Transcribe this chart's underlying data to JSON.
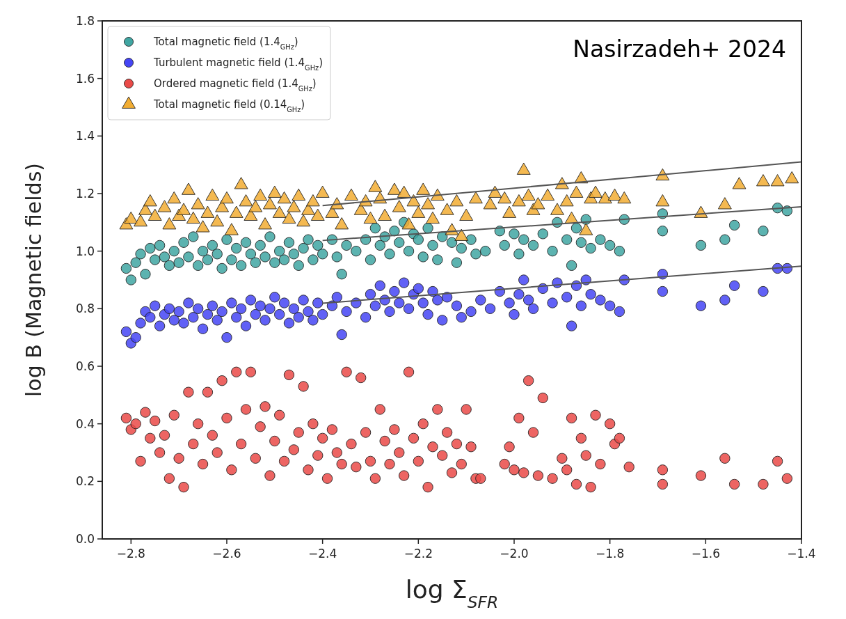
{
  "chart_data": {
    "type": "scatter",
    "xlabel": "log Σ$_{SFR}$",
    "ylabel": "log B (Magnetic fields)",
    "annotations": [
      "Nasirzadeh+ 2024"
    ],
    "xlim": [
      -2.86,
      -1.4
    ],
    "ylim": [
      0,
      1.8
    ],
    "xticks": [
      {
        "value": -2.8,
        "label": "−2.8"
      },
      {
        "value": -2.6,
        "label": "−2.6"
      },
      {
        "value": -2.4,
        "label": "−2.4"
      },
      {
        "value": -2.2,
        "label": "−2.2"
      },
      {
        "value": -2.0,
        "label": "−2.0"
      },
      {
        "value": -1.8,
        "label": "−1.8"
      },
      {
        "value": -1.6,
        "label": "−1.6"
      },
      {
        "value": -1.4,
        "label": "−1.4"
      }
    ],
    "yticks": [
      {
        "value": 0,
        "label": "0.0"
      },
      {
        "value": 0.2,
        "label": "0.2"
      },
      {
        "value": 0.4,
        "label": "0.4"
      },
      {
        "value": 0.6,
        "label": "0.6"
      },
      {
        "value": 0.8,
        "label": "0.8"
      },
      {
        "value": 1.0,
        "label": "1.0"
      },
      {
        "value": 1.2,
        "label": "1.2"
      },
      {
        "value": 1.4,
        "label": "1.4"
      },
      {
        "value": 1.6,
        "label": "1.6"
      },
      {
        "value": 1.8,
        "label": "1.8"
      }
    ],
    "grid": false,
    "legend": "top left",
    "series": [
      {
        "name": "Total magnetic field (1.4$_{GHz}$)",
        "color": "#40a6a2",
        "marker": "circle",
        "x": [
          -2.81,
          -2.8,
          -2.79,
          -2.78,
          -2.77,
          -2.76,
          -2.75,
          -2.74,
          -2.73,
          -2.72,
          -2.71,
          -2.7,
          -2.69,
          -2.68,
          -2.67,
          -2.66,
          -2.65,
          -2.64,
          -2.63,
          -2.62,
          -2.61,
          -2.6,
          -2.59,
          -2.58,
          -2.57,
          -2.56,
          -2.55,
          -2.54,
          -2.53,
          -2.52,
          -2.51,
          -2.5,
          -2.49,
          -2.48,
          -2.47,
          -2.46,
          -2.45,
          -2.44,
          -2.43,
          -2.42,
          -2.41,
          -2.4,
          -2.38,
          -2.37,
          -2.36,
          -2.35,
          -2.33,
          -2.31,
          -2.3,
          -2.29,
          -2.28,
          -2.27,
          -2.26,
          -2.25,
          -2.24,
          -2.23,
          -2.22,
          -2.21,
          -2.2,
          -2.19,
          -2.18,
          -2.17,
          -2.16,
          -2.15,
          -2.13,
          -2.12,
          -2.11,
          -2.09,
          -2.08,
          -2.06,
          -2.03,
          -2.02,
          -2.0,
          -1.99,
          -1.98,
          -1.96,
          -1.94,
          -1.92,
          -1.91,
          -1.89,
          -1.88,
          -1.87,
          -1.86,
          -1.85,
          -1.84,
          -1.82,
          -1.8,
          -1.78,
          -1.77,
          -1.69,
          -1.69,
          -1.61,
          -1.56,
          -1.54,
          -1.48,
          -1.45,
          -1.43
        ],
        "values": [
          0.94,
          0.9,
          0.96,
          0.99,
          0.92,
          1.01,
          0.97,
          1.02,
          0.98,
          0.95,
          1.0,
          0.96,
          1.03,
          0.98,
          1.05,
          0.95,
          1.0,
          0.97,
          1.02,
          0.99,
          0.94,
          1.04,
          0.97,
          1.01,
          0.95,
          1.03,
          0.99,
          0.96,
          1.02,
          0.98,
          1.05,
          0.96,
          1.0,
          0.97,
          1.03,
          0.99,
          0.95,
          1.01,
          1.04,
          0.97,
          1.02,
          0.99,
          1.04,
          0.98,
          0.92,
          1.02,
          1.0,
          1.04,
          0.97,
          1.08,
          1.02,
          1.05,
          0.99,
          1.07,
          1.03,
          1.1,
          1.0,
          1.06,
          1.04,
          0.98,
          1.08,
          1.02,
          0.97,
          1.05,
          1.03,
          0.96,
          1.01,
          1.04,
          0.99,
          1.0,
          1.07,
          1.02,
          1.06,
          0.99,
          1.04,
          1.02,
          1.06,
          1.0,
          1.1,
          1.04,
          0.95,
          1.08,
          1.03,
          1.11,
          1.01,
          1.04,
          1.02,
          1.0,
          1.11,
          1.07,
          1.13,
          1.02,
          1.04,
          1.09,
          1.07,
          1.15,
          1.14
        ]
      },
      {
        "name": "Turbulent magnetic field (1.4$_{GHz}$)",
        "color": "#4545f5",
        "marker": "circle",
        "x": [
          -2.81,
          -2.8,
          -2.79,
          -2.78,
          -2.77,
          -2.76,
          -2.75,
          -2.74,
          -2.73,
          -2.72,
          -2.71,
          -2.7,
          -2.69,
          -2.68,
          -2.67,
          -2.66,
          -2.65,
          -2.64,
          -2.63,
          -2.62,
          -2.61,
          -2.6,
          -2.59,
          -2.58,
          -2.57,
          -2.56,
          -2.55,
          -2.54,
          -2.53,
          -2.52,
          -2.51,
          -2.5,
          -2.49,
          -2.48,
          -2.47,
          -2.46,
          -2.45,
          -2.44,
          -2.43,
          -2.42,
          -2.41,
          -2.4,
          -2.38,
          -2.37,
          -2.36,
          -2.35,
          -2.33,
          -2.31,
          -2.3,
          -2.29,
          -2.28,
          -2.27,
          -2.26,
          -2.25,
          -2.24,
          -2.23,
          -2.22,
          -2.21,
          -2.2,
          -2.19,
          -2.18,
          -2.17,
          -2.16,
          -2.15,
          -2.14,
          -2.12,
          -2.11,
          -2.09,
          -2.07,
          -2.05,
          -2.03,
          -2.01,
          -2.0,
          -1.99,
          -1.98,
          -1.97,
          -1.96,
          -1.94,
          -1.92,
          -1.91,
          -1.89,
          -1.88,
          -1.87,
          -1.86,
          -1.85,
          -1.84,
          -1.82,
          -1.8,
          -1.78,
          -1.77,
          -1.69,
          -1.69,
          -1.61,
          -1.56,
          -1.54,
          -1.48,
          -1.45,
          -1.43
        ],
        "values": [
          0.72,
          0.68,
          0.7,
          0.75,
          0.79,
          0.77,
          0.81,
          0.74,
          0.78,
          0.8,
          0.76,
          0.79,
          0.75,
          0.82,
          0.77,
          0.8,
          0.73,
          0.78,
          0.81,
          0.76,
          0.79,
          0.7,
          0.82,
          0.77,
          0.8,
          0.74,
          0.83,
          0.78,
          0.81,
          0.76,
          0.8,
          0.84,
          0.78,
          0.82,
          0.75,
          0.8,
          0.77,
          0.83,
          0.79,
          0.76,
          0.82,
          0.78,
          0.81,
          0.84,
          0.71,
          0.79,
          0.82,
          0.77,
          0.85,
          0.81,
          0.88,
          0.83,
          0.79,
          0.86,
          0.82,
          0.89,
          0.8,
          0.85,
          0.87,
          0.82,
          0.78,
          0.86,
          0.83,
          0.76,
          0.84,
          0.81,
          0.77,
          0.79,
          0.83,
          0.8,
          0.86,
          0.82,
          0.78,
          0.85,
          0.9,
          0.83,
          0.8,
          0.87,
          0.82,
          0.89,
          0.84,
          0.74,
          0.88,
          0.81,
          0.9,
          0.85,
          0.83,
          0.81,
          0.79,
          0.9,
          0.86,
          0.92,
          0.81,
          0.83,
          0.88,
          0.86,
          0.94,
          0.94
        ]
      },
      {
        "name": "Ordered magnetic field (1.4$_{GHz}$)",
        "color": "#ea4a48",
        "marker": "circle",
        "x": [
          -2.81,
          -2.8,
          -2.79,
          -2.78,
          -2.77,
          -2.76,
          -2.75,
          -2.74,
          -2.73,
          -2.72,
          -2.71,
          -2.7,
          -2.69,
          -2.68,
          -2.67,
          -2.66,
          -2.65,
          -2.64,
          -2.63,
          -2.62,
          -2.61,
          -2.6,
          -2.59,
          -2.58,
          -2.57,
          -2.56,
          -2.55,
          -2.54,
          -2.53,
          -2.52,
          -2.51,
          -2.5,
          -2.49,
          -2.48,
          -2.47,
          -2.46,
          -2.45,
          -2.44,
          -2.43,
          -2.42,
          -2.41,
          -2.4,
          -2.39,
          -2.38,
          -2.37,
          -2.36,
          -2.35,
          -2.34,
          -2.33,
          -2.32,
          -2.31,
          -2.3,
          -2.29,
          -2.28,
          -2.27,
          -2.26,
          -2.25,
          -2.24,
          -2.23,
          -2.22,
          -2.21,
          -2.2,
          -2.19,
          -2.18,
          -2.17,
          -2.16,
          -2.15,
          -2.14,
          -2.13,
          -2.12,
          -2.11,
          -2.1,
          -2.09,
          -2.08,
          -2.07,
          -2.02,
          -2.01,
          -2.0,
          -1.99,
          -1.98,
          -1.97,
          -1.96,
          -1.95,
          -1.94,
          -1.92,
          -1.9,
          -1.89,
          -1.88,
          -1.87,
          -1.86,
          -1.85,
          -1.84,
          -1.83,
          -1.82,
          -1.8,
          -1.79,
          -1.78,
          -1.76,
          -1.69,
          -1.69,
          -1.61,
          -1.56,
          -1.54,
          -1.48,
          -1.45,
          -1.43
        ],
        "values": [
          0.42,
          0.38,
          0.4,
          0.27,
          0.44,
          0.35,
          0.41,
          0.3,
          0.36,
          0.21,
          0.43,
          0.28,
          0.18,
          0.51,
          0.33,
          0.4,
          0.26,
          0.51,
          0.36,
          0.3,
          0.55,
          0.42,
          0.24,
          0.58,
          0.33,
          0.45,
          0.58,
          0.28,
          0.39,
          0.46,
          0.22,
          0.34,
          0.43,
          0.27,
          0.57,
          0.31,
          0.37,
          0.53,
          0.24,
          0.4,
          0.29,
          0.35,
          0.21,
          0.38,
          0.3,
          0.26,
          0.58,
          0.33,
          0.25,
          0.56,
          0.37,
          0.27,
          0.21,
          0.45,
          0.34,
          0.26,
          0.38,
          0.3,
          0.22,
          0.58,
          0.35,
          0.27,
          0.4,
          0.18,
          0.32,
          0.45,
          0.29,
          0.37,
          0.23,
          0.33,
          0.26,
          0.45,
          0.32,
          0.21,
          0.21,
          0.26,
          0.32,
          0.24,
          0.42,
          0.23,
          0.55,
          0.37,
          0.22,
          0.49,
          0.21,
          0.28,
          0.24,
          0.42,
          0.19,
          0.35,
          0.29,
          0.18,
          0.43,
          0.26,
          0.4,
          0.33,
          0.35,
          0.25,
          0.24,
          0.19,
          0.22,
          0.28,
          0.19,
          0.19,
          0.27,
          0.21
        ]
      },
      {
        "name": "Total magnetic field (0.14$_{GHz}$)",
        "color": "#f2ad33",
        "marker": "triangle",
        "x": [
          -2.81,
          -2.8,
          -2.78,
          -2.77,
          -2.76,
          -2.75,
          -2.73,
          -2.72,
          -2.71,
          -2.7,
          -2.69,
          -2.68,
          -2.67,
          -2.66,
          -2.65,
          -2.64,
          -2.63,
          -2.62,
          -2.61,
          -2.6,
          -2.59,
          -2.58,
          -2.57,
          -2.56,
          -2.55,
          -2.54,
          -2.53,
          -2.52,
          -2.51,
          -2.5,
          -2.49,
          -2.48,
          -2.47,
          -2.46,
          -2.45,
          -2.44,
          -2.43,
          -2.42,
          -2.41,
          -2.4,
          -2.38,
          -2.37,
          -2.36,
          -2.34,
          -2.32,
          -2.31,
          -2.3,
          -2.29,
          -2.28,
          -2.27,
          -2.25,
          -2.24,
          -2.23,
          -2.22,
          -2.21,
          -2.2,
          -2.19,
          -2.18,
          -2.17,
          -2.16,
          -2.14,
          -2.13,
          -2.12,
          -2.11,
          -2.1,
          -2.08,
          -2.05,
          -2.04,
          -2.02,
          -2.01,
          -1.99,
          -1.98,
          -1.97,
          -1.96,
          -1.95,
          -1.93,
          -1.91,
          -1.9,
          -1.89,
          -1.88,
          -1.87,
          -1.86,
          -1.85,
          -1.84,
          -1.83,
          -1.81,
          -1.79,
          -1.77,
          -1.69,
          -1.69,
          -1.61,
          -1.56,
          -1.53,
          -1.48,
          -1.45,
          -1.42
        ],
        "values": [
          1.09,
          1.11,
          1.1,
          1.14,
          1.17,
          1.12,
          1.15,
          1.09,
          1.18,
          1.12,
          1.14,
          1.21,
          1.11,
          1.16,
          1.08,
          1.13,
          1.19,
          1.1,
          1.15,
          1.18,
          1.07,
          1.13,
          1.23,
          1.17,
          1.12,
          1.15,
          1.19,
          1.09,
          1.16,
          1.2,
          1.13,
          1.18,
          1.11,
          1.15,
          1.19,
          1.1,
          1.14,
          1.17,
          1.12,
          1.2,
          1.13,
          1.16,
          1.09,
          1.19,
          1.14,
          1.17,
          1.11,
          1.22,
          1.18,
          1.12,
          1.21,
          1.15,
          1.2,
          1.09,
          1.17,
          1.13,
          1.21,
          1.16,
          1.11,
          1.19,
          1.14,
          1.07,
          1.17,
          1.05,
          1.12,
          1.18,
          1.16,
          1.2,
          1.18,
          1.13,
          1.17,
          1.28,
          1.19,
          1.14,
          1.16,
          1.19,
          1.14,
          1.23,
          1.17,
          1.11,
          1.2,
          1.25,
          1.07,
          1.18,
          1.2,
          1.18,
          1.19,
          1.18,
          1.17,
          1.26,
          1.13,
          1.16,
          1.23,
          1.24,
          1.24,
          1.25
        ]
      },
      {
        "type": "line",
        "color": "#555555",
        "x": [
          -2.4,
          -1.4
        ],
        "values": [
          1.158,
          1.31
        ],
        "marker": "none"
      },
      {
        "type": "line",
        "color": "#555555",
        "x": [
          -2.4,
          -1.4
        ],
        "values": [
          1.037,
          1.154
        ],
        "marker": "none"
      },
      {
        "type": "line",
        "color": "#555555",
        "x": [
          -2.4,
          -1.4
        ],
        "values": [
          0.819,
          0.948
        ],
        "marker": "none"
      }
    ]
  }
}
